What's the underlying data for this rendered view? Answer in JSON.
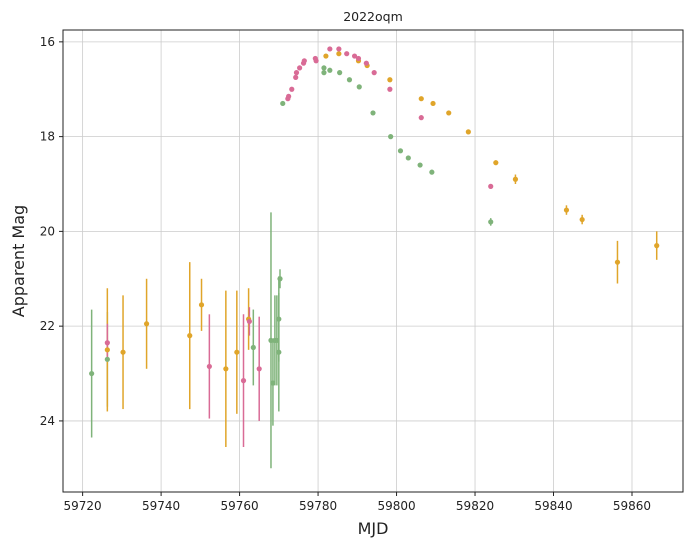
{
  "chart_data": {
    "type": "scatter",
    "title": "2022oqm",
    "xlabel": "MJD",
    "ylabel": "Apparent Mag",
    "xlim": [
      59715,
      59873
    ],
    "ylim": [
      25.5,
      15.75
    ],
    "y_inverted": true,
    "grid": true,
    "xticks": [
      59720,
      59740,
      59760,
      59780,
      59800,
      59820,
      59840,
      59860
    ],
    "yticks": [
      16,
      18,
      20,
      22,
      24
    ],
    "series": [
      {
        "color": "#7fb37a",
        "points": [
          {
            "x": 59722.3,
            "y": 23.0,
            "err": 1.35
          },
          {
            "x": 59726.3,
            "y": 22.7,
            "err": 1.0
          },
          {
            "x": 59763.5,
            "y": 22.45,
            "err": 0.8
          },
          {
            "x": 59768.0,
            "y": 22.3,
            "err": 2.7
          },
          {
            "x": 59768.5,
            "y": 23.2,
            "err": 0.9
          },
          {
            "x": 59769.0,
            "y": 22.3,
            "err": 0.95
          },
          {
            "x": 59769.5,
            "y": 22.3,
            "err": 0.95
          },
          {
            "x": 59770.0,
            "y": 21.85,
            "err": 0.9
          },
          {
            "x": 59770.3,
            "y": 21.0,
            "err": 0.2
          },
          {
            "x": 59770.0,
            "y": 22.55,
            "err": 1.25
          },
          {
            "x": 59771.0,
            "y": 17.3,
            "err": 0.03
          },
          {
            "x": 59781.5,
            "y": 16.55,
            "err": 0.03
          },
          {
            "x": 59781.5,
            "y": 16.65,
            "err": 0.03
          },
          {
            "x": 59783.0,
            "y": 16.6,
            "err": 0.03
          },
          {
            "x": 59785.5,
            "y": 16.65,
            "err": 0.03
          },
          {
            "x": 59788.0,
            "y": 16.8,
            "err": 0.03
          },
          {
            "x": 59790.5,
            "y": 16.95,
            "err": 0.03
          },
          {
            "x": 59794.0,
            "y": 17.5,
            "err": 0.03
          },
          {
            "x": 59798.5,
            "y": 18.0,
            "err": 0.03
          },
          {
            "x": 59801.0,
            "y": 18.3,
            "err": 0.03
          },
          {
            "x": 59803.0,
            "y": 18.45,
            "err": 0.03
          },
          {
            "x": 59806.0,
            "y": 18.6,
            "err": 0.03
          },
          {
            "x": 59809.0,
            "y": 18.75,
            "err": 0.03
          },
          {
            "x": 59824.0,
            "y": 19.8,
            "err": 0.08
          }
        ]
      },
      {
        "color": "#e0a52a",
        "points": [
          {
            "x": 59726.3,
            "y": 22.5,
            "err": 1.3
          },
          {
            "x": 59730.3,
            "y": 22.55,
            "err": 1.2
          },
          {
            "x": 59736.3,
            "y": 21.95,
            "err": 0.95
          },
          {
            "x": 59747.3,
            "y": 22.2,
            "err": 1.55
          },
          {
            "x": 59750.3,
            "y": 21.55,
            "err": 0.55
          },
          {
            "x": 59756.5,
            "y": 22.9,
            "err": 1.65
          },
          {
            "x": 59759.3,
            "y": 22.55,
            "err": 1.3
          },
          {
            "x": 59762.3,
            "y": 21.85,
            "err": 0.65
          },
          {
            "x": 59782.0,
            "y": 16.3,
            "err": 0.03
          },
          {
            "x": 59785.3,
            "y": 16.25,
            "err": 0.03
          },
          {
            "x": 59790.3,
            "y": 16.4,
            "err": 0.03
          },
          {
            "x": 59792.5,
            "y": 16.5,
            "err": 0.03
          },
          {
            "x": 59798.3,
            "y": 16.8,
            "err": 0.03
          },
          {
            "x": 59806.3,
            "y": 17.2,
            "err": 0.03
          },
          {
            "x": 59809.3,
            "y": 17.3,
            "err": 0.03
          },
          {
            "x": 59813.3,
            "y": 17.5,
            "err": 0.03
          },
          {
            "x": 59818.3,
            "y": 17.9,
            "err": 0.03
          },
          {
            "x": 59825.3,
            "y": 18.55,
            "err": 0.05
          },
          {
            "x": 59830.3,
            "y": 18.9,
            "err": 0.1
          },
          {
            "x": 59843.3,
            "y": 19.55,
            "err": 0.1
          },
          {
            "x": 59847.3,
            "y": 19.75,
            "err": 0.1
          },
          {
            "x": 59856.3,
            "y": 20.65,
            "err": 0.45
          },
          {
            "x": 59866.3,
            "y": 20.3,
            "err": 0.3
          }
        ]
      },
      {
        "color": "#d96b96",
        "points": [
          {
            "x": 59726.3,
            "y": 22.35,
            "err": 0.4
          },
          {
            "x": 59752.3,
            "y": 22.85,
            "err": 1.1
          },
          {
            "x": 59761.0,
            "y": 23.15,
            "err": 1.4
          },
          {
            "x": 59762.5,
            "y": 21.9,
            "err": 0.3
          },
          {
            "x": 59765.0,
            "y": 22.9,
            "err": 1.1
          },
          {
            "x": 59772.3,
            "y": 17.2,
            "err": 0.03
          },
          {
            "x": 59772.5,
            "y": 17.15,
            "err": 0.03
          },
          {
            "x": 59773.3,
            "y": 17.0,
            "err": 0.03
          },
          {
            "x": 59774.3,
            "y": 16.75,
            "err": 0.03
          },
          {
            "x": 59774.5,
            "y": 16.65,
            "err": 0.03
          },
          {
            "x": 59775.3,
            "y": 16.55,
            "err": 0.03
          },
          {
            "x": 59776.3,
            "y": 16.45,
            "err": 0.03
          },
          {
            "x": 59776.5,
            "y": 16.4,
            "err": 0.03
          },
          {
            "x": 59779.3,
            "y": 16.35,
            "err": 0.03
          },
          {
            "x": 59779.5,
            "y": 16.4,
            "err": 0.03
          },
          {
            "x": 59783.0,
            "y": 16.15,
            "err": 0.03
          },
          {
            "x": 59785.3,
            "y": 16.15,
            "err": 0.03
          },
          {
            "x": 59787.3,
            "y": 16.25,
            "err": 0.03
          },
          {
            "x": 59789.3,
            "y": 16.3,
            "err": 0.03
          },
          {
            "x": 59790.3,
            "y": 16.35,
            "err": 0.03
          },
          {
            "x": 59792.3,
            "y": 16.45,
            "err": 0.03
          },
          {
            "x": 59794.3,
            "y": 16.65,
            "err": 0.03
          },
          {
            "x": 59798.3,
            "y": 17.0,
            "err": 0.03
          },
          {
            "x": 59806.3,
            "y": 17.6,
            "err": 0.03
          },
          {
            "x": 59824.0,
            "y": 19.05,
            "err": 0.04
          }
        ]
      }
    ]
  }
}
